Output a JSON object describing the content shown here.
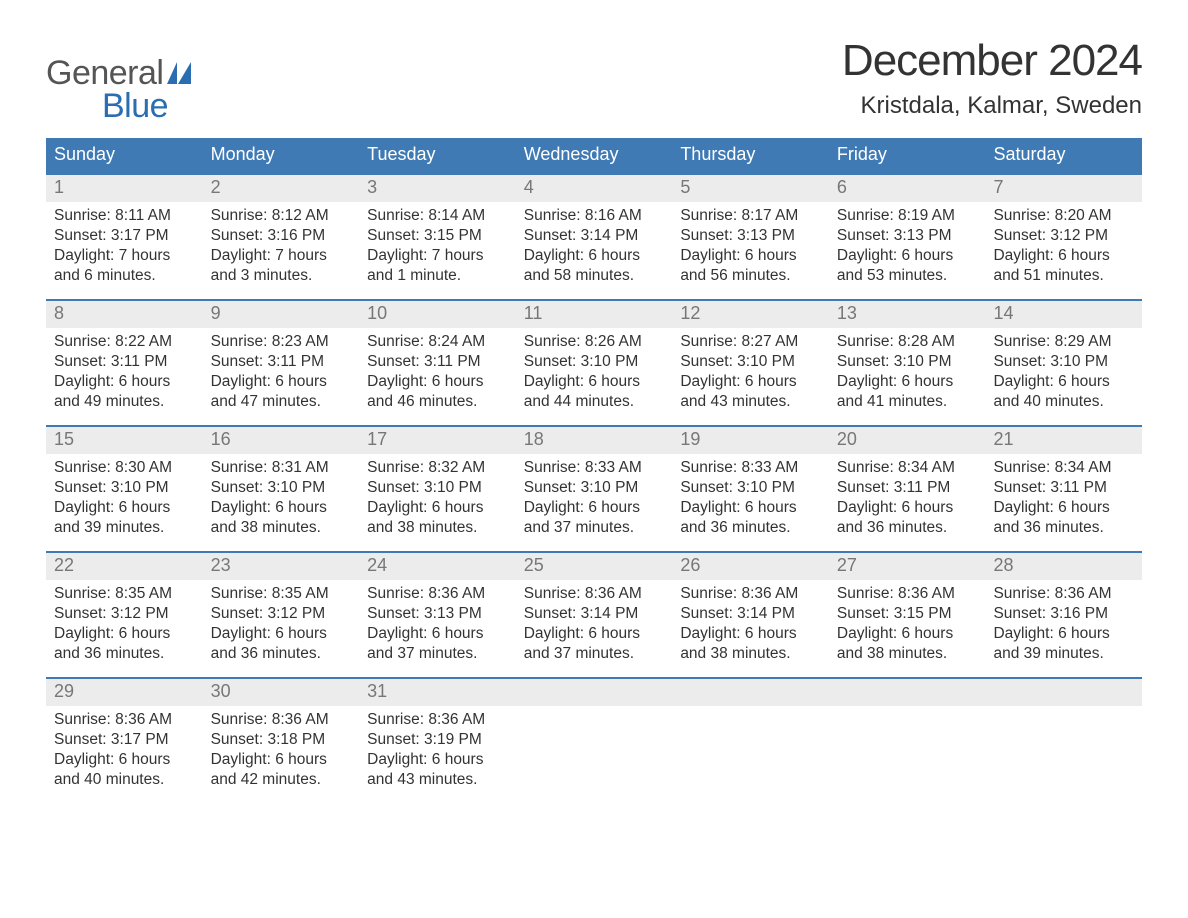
{
  "colors": {
    "header_bg": "#3f7ab5",
    "header_text": "#ffffff",
    "daynum_bg": "#ececec",
    "daynum_text": "#777777",
    "body_text": "#333333",
    "week_border": "#3f7ab5",
    "logo_gray": "#555555",
    "logo_blue": "#2a6db0",
    "background": "#ffffff"
  },
  "typography": {
    "month_title_fontsize": 44,
    "location_fontsize": 24,
    "dow_fontsize": 18,
    "daynum_fontsize": 18,
    "body_fontsize": 15.5,
    "logo_fontsize": 34
  },
  "logo": {
    "general": "General",
    "blue": "Blue"
  },
  "title": "December 2024",
  "location": "Kristdala, Kalmar, Sweden",
  "days_of_week": [
    "Sunday",
    "Monday",
    "Tuesday",
    "Wednesday",
    "Thursday",
    "Friday",
    "Saturday"
  ],
  "weeks": [
    [
      {
        "num": "1",
        "sunrise": "Sunrise: 8:11 AM",
        "sunset": "Sunset: 3:17 PM",
        "dl1": "Daylight: 7 hours",
        "dl2": "and 6 minutes."
      },
      {
        "num": "2",
        "sunrise": "Sunrise: 8:12 AM",
        "sunset": "Sunset: 3:16 PM",
        "dl1": "Daylight: 7 hours",
        "dl2": "and 3 minutes."
      },
      {
        "num": "3",
        "sunrise": "Sunrise: 8:14 AM",
        "sunset": "Sunset: 3:15 PM",
        "dl1": "Daylight: 7 hours",
        "dl2": "and 1 minute."
      },
      {
        "num": "4",
        "sunrise": "Sunrise: 8:16 AM",
        "sunset": "Sunset: 3:14 PM",
        "dl1": "Daylight: 6 hours",
        "dl2": "and 58 minutes."
      },
      {
        "num": "5",
        "sunrise": "Sunrise: 8:17 AM",
        "sunset": "Sunset: 3:13 PM",
        "dl1": "Daylight: 6 hours",
        "dl2": "and 56 minutes."
      },
      {
        "num": "6",
        "sunrise": "Sunrise: 8:19 AM",
        "sunset": "Sunset: 3:13 PM",
        "dl1": "Daylight: 6 hours",
        "dl2": "and 53 minutes."
      },
      {
        "num": "7",
        "sunrise": "Sunrise: 8:20 AM",
        "sunset": "Sunset: 3:12 PM",
        "dl1": "Daylight: 6 hours",
        "dl2": "and 51 minutes."
      }
    ],
    [
      {
        "num": "8",
        "sunrise": "Sunrise: 8:22 AM",
        "sunset": "Sunset: 3:11 PM",
        "dl1": "Daylight: 6 hours",
        "dl2": "and 49 minutes."
      },
      {
        "num": "9",
        "sunrise": "Sunrise: 8:23 AM",
        "sunset": "Sunset: 3:11 PM",
        "dl1": "Daylight: 6 hours",
        "dl2": "and 47 minutes."
      },
      {
        "num": "10",
        "sunrise": "Sunrise: 8:24 AM",
        "sunset": "Sunset: 3:11 PM",
        "dl1": "Daylight: 6 hours",
        "dl2": "and 46 minutes."
      },
      {
        "num": "11",
        "sunrise": "Sunrise: 8:26 AM",
        "sunset": "Sunset: 3:10 PM",
        "dl1": "Daylight: 6 hours",
        "dl2": "and 44 minutes."
      },
      {
        "num": "12",
        "sunrise": "Sunrise: 8:27 AM",
        "sunset": "Sunset: 3:10 PM",
        "dl1": "Daylight: 6 hours",
        "dl2": "and 43 minutes."
      },
      {
        "num": "13",
        "sunrise": "Sunrise: 8:28 AM",
        "sunset": "Sunset: 3:10 PM",
        "dl1": "Daylight: 6 hours",
        "dl2": "and 41 minutes."
      },
      {
        "num": "14",
        "sunrise": "Sunrise: 8:29 AM",
        "sunset": "Sunset: 3:10 PM",
        "dl1": "Daylight: 6 hours",
        "dl2": "and 40 minutes."
      }
    ],
    [
      {
        "num": "15",
        "sunrise": "Sunrise: 8:30 AM",
        "sunset": "Sunset: 3:10 PM",
        "dl1": "Daylight: 6 hours",
        "dl2": "and 39 minutes."
      },
      {
        "num": "16",
        "sunrise": "Sunrise: 8:31 AM",
        "sunset": "Sunset: 3:10 PM",
        "dl1": "Daylight: 6 hours",
        "dl2": "and 38 minutes."
      },
      {
        "num": "17",
        "sunrise": "Sunrise: 8:32 AM",
        "sunset": "Sunset: 3:10 PM",
        "dl1": "Daylight: 6 hours",
        "dl2": "and 38 minutes."
      },
      {
        "num": "18",
        "sunrise": "Sunrise: 8:33 AM",
        "sunset": "Sunset: 3:10 PM",
        "dl1": "Daylight: 6 hours",
        "dl2": "and 37 minutes."
      },
      {
        "num": "19",
        "sunrise": "Sunrise: 8:33 AM",
        "sunset": "Sunset: 3:10 PM",
        "dl1": "Daylight: 6 hours",
        "dl2": "and 36 minutes."
      },
      {
        "num": "20",
        "sunrise": "Sunrise: 8:34 AM",
        "sunset": "Sunset: 3:11 PM",
        "dl1": "Daylight: 6 hours",
        "dl2": "and 36 minutes."
      },
      {
        "num": "21",
        "sunrise": "Sunrise: 8:34 AM",
        "sunset": "Sunset: 3:11 PM",
        "dl1": "Daylight: 6 hours",
        "dl2": "and 36 minutes."
      }
    ],
    [
      {
        "num": "22",
        "sunrise": "Sunrise: 8:35 AM",
        "sunset": "Sunset: 3:12 PM",
        "dl1": "Daylight: 6 hours",
        "dl2": "and 36 minutes."
      },
      {
        "num": "23",
        "sunrise": "Sunrise: 8:35 AM",
        "sunset": "Sunset: 3:12 PM",
        "dl1": "Daylight: 6 hours",
        "dl2": "and 36 minutes."
      },
      {
        "num": "24",
        "sunrise": "Sunrise: 8:36 AM",
        "sunset": "Sunset: 3:13 PM",
        "dl1": "Daylight: 6 hours",
        "dl2": "and 37 minutes."
      },
      {
        "num": "25",
        "sunrise": "Sunrise: 8:36 AM",
        "sunset": "Sunset: 3:14 PM",
        "dl1": "Daylight: 6 hours",
        "dl2": "and 37 minutes."
      },
      {
        "num": "26",
        "sunrise": "Sunrise: 8:36 AM",
        "sunset": "Sunset: 3:14 PM",
        "dl1": "Daylight: 6 hours",
        "dl2": "and 38 minutes."
      },
      {
        "num": "27",
        "sunrise": "Sunrise: 8:36 AM",
        "sunset": "Sunset: 3:15 PM",
        "dl1": "Daylight: 6 hours",
        "dl2": "and 38 minutes."
      },
      {
        "num": "28",
        "sunrise": "Sunrise: 8:36 AM",
        "sunset": "Sunset: 3:16 PM",
        "dl1": "Daylight: 6 hours",
        "dl2": "and 39 minutes."
      }
    ],
    [
      {
        "num": "29",
        "sunrise": "Sunrise: 8:36 AM",
        "sunset": "Sunset: 3:17 PM",
        "dl1": "Daylight: 6 hours",
        "dl2": "and 40 minutes."
      },
      {
        "num": "30",
        "sunrise": "Sunrise: 8:36 AM",
        "sunset": "Sunset: 3:18 PM",
        "dl1": "Daylight: 6 hours",
        "dl2": "and 42 minutes."
      },
      {
        "num": "31",
        "sunrise": "Sunrise: 8:36 AM",
        "sunset": "Sunset: 3:19 PM",
        "dl1": "Daylight: 6 hours",
        "dl2": "and 43 minutes."
      },
      {
        "empty": true
      },
      {
        "empty": true
      },
      {
        "empty": true
      },
      {
        "empty": true
      }
    ]
  ]
}
